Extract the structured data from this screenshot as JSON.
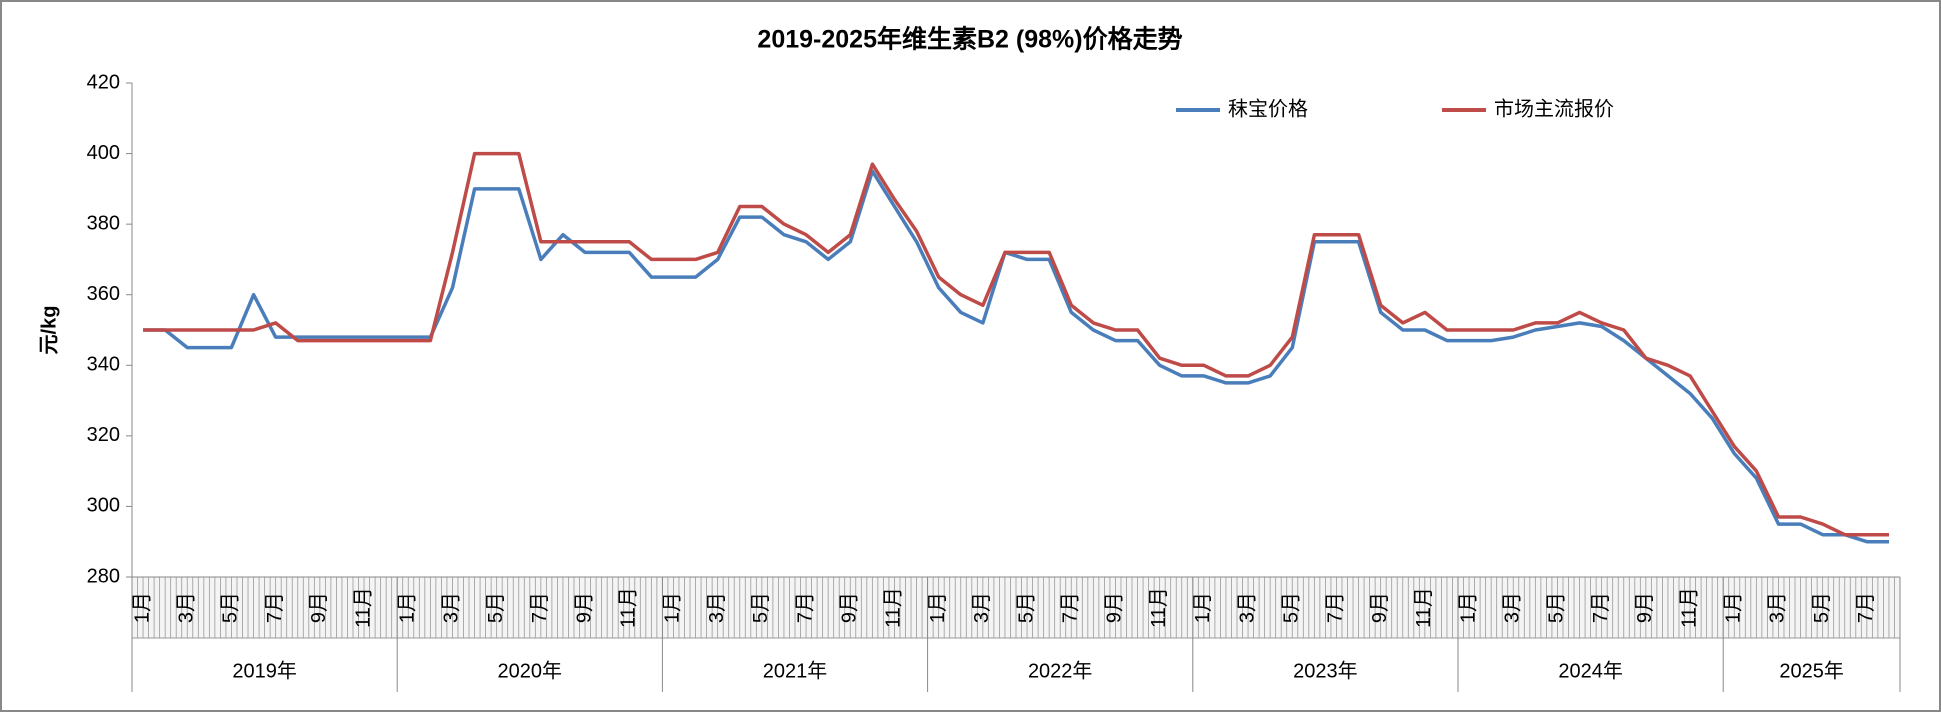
{
  "chart_data": {
    "type": "line",
    "title": "2019-2025年维生素B2 (98%)价格走势",
    "y_label": "元/kg",
    "categories": [
      "1月",
      null,
      "3月",
      null,
      "5月",
      null,
      "7月",
      null,
      "9月",
      null,
      "11月",
      null,
      "1月",
      null,
      "3月",
      null,
      "5月",
      null,
      "7月",
      null,
      "9月",
      null,
      "11月",
      null,
      "1月",
      null,
      "3月",
      null,
      "5月",
      null,
      "7月",
      null,
      "9月",
      null,
      "11月",
      null,
      "1月",
      null,
      "3月",
      null,
      "5月",
      null,
      "7月",
      null,
      "9月",
      null,
      "11月",
      null,
      "1月",
      null,
      "3月",
      null,
      "5月",
      null,
      "7月",
      null,
      "9月",
      null,
      "11月",
      null,
      "1月",
      null,
      "3月",
      null,
      "5月",
      null,
      "7月",
      null,
      "9月",
      null,
      "11月",
      null,
      "1月",
      null,
      "3月",
      null,
      "5月",
      null,
      "7月",
      null
    ],
    "groups": [
      "2019年",
      "2020年",
      "2021年",
      "2022年",
      "2023年",
      "2024年",
      "2025年"
    ],
    "series": [
      {
        "name": "秣宝价格",
        "color": "#4a7ebb",
        "values": [
          350,
          350,
          345,
          345,
          345,
          360,
          348,
          348,
          348,
          348,
          348,
          348,
          348,
          348,
          362,
          390,
          390,
          390,
          370,
          377,
          372,
          372,
          372,
          365,
          365,
          365,
          370,
          382,
          382,
          377,
          375,
          370,
          375,
          395,
          385,
          375,
          362,
          355,
          352,
          372,
          370,
          370,
          355,
          350,
          347,
          347,
          340,
          337,
          337,
          335,
          335,
          337,
          345,
          375,
          375,
          375,
          355,
          350,
          350,
          347,
          347,
          347,
          348,
          350,
          351,
          352,
          351,
          347,
          342,
          337,
          332,
          325,
          315,
          308,
          295,
          295,
          292,
          292,
          290,
          290
        ]
      },
      {
        "name": "市场主流报价",
        "color": "#be4b48",
        "values": [
          350,
          350,
          350,
          350,
          350,
          350,
          352,
          347,
          347,
          347,
          347,
          347,
          347,
          347,
          372,
          400,
          400,
          400,
          375,
          375,
          375,
          375,
          375,
          370,
          370,
          370,
          372,
          385,
          385,
          380,
          377,
          372,
          377,
          397,
          387,
          378,
          365,
          360,
          357,
          372,
          372,
          372,
          357,
          352,
          350,
          350,
          342,
          340,
          340,
          337,
          337,
          340,
          348,
          377,
          377,
          377,
          357,
          352,
          355,
          350,
          350,
          350,
          350,
          352,
          352,
          355,
          352,
          350,
          342,
          340,
          337,
          327,
          317,
          310,
          297,
          297,
          295,
          292,
          292,
          292
        ]
      }
    ],
    "ylim": [
      280,
      420
    ],
    "yticks": [
      280,
      300,
      320,
      340,
      360,
      380,
      400,
      420
    ],
    "legend": "top-right"
  }
}
